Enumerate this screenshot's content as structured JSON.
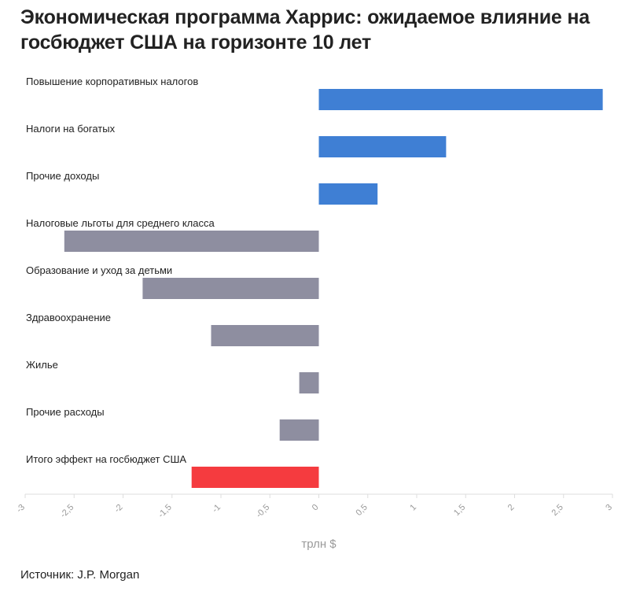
{
  "title": "Экономическая программа Харрис: ожидаемое влияние на госбюджет США на горизонте 10 лет",
  "source": "Источник: J.P. Morgan",
  "colors": {
    "revenue": "#3f7fd4",
    "spending": "#8e8ea0",
    "total": "#f53b3f",
    "axis": "#dddddd"
  },
  "chart_data": {
    "type": "bar",
    "orientation": "horizontal",
    "categories": [
      "Повышение корпоративных налогов",
      "Налоги на богатых",
      "Прочие доходы",
      "Налоговые льготы для среднего класса",
      "Образование и уход за детьми",
      "Здравоохранение",
      "Жилье",
      "Прочие расходы",
      "Итого эффект на госбюджет США"
    ],
    "values": [
      2.9,
      1.3,
      0.6,
      -2.6,
      -1.8,
      -1.1,
      -0.2,
      -0.4,
      -1.3
    ],
    "groups": [
      "revenue",
      "revenue",
      "revenue",
      "spending",
      "spending",
      "spending",
      "spending",
      "spending",
      "total"
    ],
    "xlabel": "трлн $",
    "xlim": [
      -3,
      3
    ],
    "xticks": [
      -3,
      -2.5,
      -2,
      -1.5,
      -1,
      -0.5,
      0,
      0.5,
      1,
      1.5,
      2,
      2.5,
      3
    ],
    "xtick_labels": [
      "-3",
      "-2,5",
      "-2",
      "-1,5",
      "-1",
      "-0,5",
      "0",
      "0,5",
      "1",
      "1,5",
      "2",
      "2,5",
      "3"
    ],
    "grid": false,
    "legend": "none"
  }
}
